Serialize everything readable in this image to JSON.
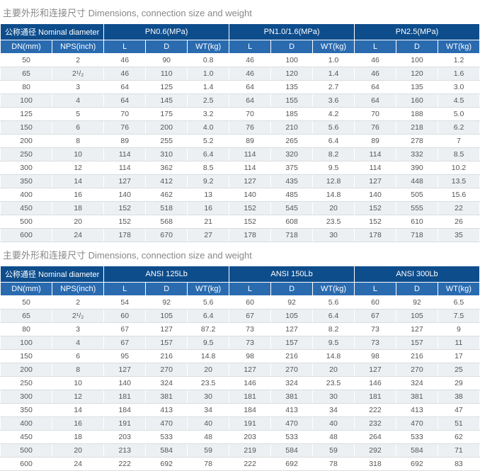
{
  "title1": "主要外形和连接尺寸 Dimensions, connection size and weight",
  "title2": "主要外形和连接尺寸 Dimensions, connection size and weight",
  "nomHeader": "公称通径 Nominal diameter",
  "dnHeader": "DN(mm)",
  "npsHeader": "NPS(inch)",
  "lHeader": "L",
  "dHeader": "D",
  "wtHeader": "WT(kg)",
  "t1": {
    "groups": [
      "PN0.6(MPa)",
      "PN1.0/1.6(MPa)",
      "PN2.5(MPa)"
    ],
    "rows": [
      {
        "dn": "50",
        "nps": "2",
        "v": [
          "46",
          "90",
          "0.8",
          "46",
          "100",
          "1.0",
          "46",
          "100",
          "1.2"
        ]
      },
      {
        "dn": "65",
        "nps": "2¹/₂",
        "v": [
          "46",
          "110",
          "1.0",
          "46",
          "120",
          "1.4",
          "46",
          "120",
          "1.6"
        ]
      },
      {
        "dn": "80",
        "nps": "3",
        "v": [
          "64",
          "125",
          "1.4",
          "64",
          "135",
          "2.7",
          "64",
          "135",
          "3.0"
        ]
      },
      {
        "dn": "100",
        "nps": "4",
        "v": [
          "64",
          "145",
          "2.5",
          "64",
          "155",
          "3.6",
          "64",
          "160",
          "4.5"
        ]
      },
      {
        "dn": "125",
        "nps": "5",
        "v": [
          "70",
          "175",
          "3.2",
          "70",
          "185",
          "4.2",
          "70",
          "188",
          "5.0"
        ]
      },
      {
        "dn": "150",
        "nps": "6",
        "v": [
          "76",
          "200",
          "4.0",
          "76",
          "210",
          "5.6",
          "76",
          "218",
          "6.2"
        ]
      },
      {
        "dn": "200",
        "nps": "8",
        "v": [
          "89",
          "255",
          "5.2",
          "89",
          "265",
          "6.4",
          "89",
          "278",
          "7"
        ]
      },
      {
        "dn": "250",
        "nps": "10",
        "v": [
          "114",
          "310",
          "6.4",
          "114",
          "320",
          "8.2",
          "114",
          "332",
          "8.5"
        ]
      },
      {
        "dn": "300",
        "nps": "12",
        "v": [
          "114",
          "362",
          "8.5",
          "114",
          "375",
          "9.5",
          "114",
          "390",
          "10.2"
        ]
      },
      {
        "dn": "350",
        "nps": "14",
        "v": [
          "127",
          "412",
          "9.2",
          "127",
          "435",
          "12.8",
          "127",
          "448",
          "13.5"
        ]
      },
      {
        "dn": "400",
        "nps": "16",
        "v": [
          "140",
          "462",
          "13",
          "140",
          "485",
          "14.8",
          "140",
          "505",
          "15.6"
        ]
      },
      {
        "dn": "450",
        "nps": "18",
        "v": [
          "152",
          "518",
          "16",
          "152",
          "545",
          "20",
          "152",
          "555",
          "22"
        ]
      },
      {
        "dn": "500",
        "nps": "20",
        "v": [
          "152",
          "568",
          "21",
          "152",
          "608",
          "23.5",
          "152",
          "610",
          "26"
        ]
      },
      {
        "dn": "600",
        "nps": "24",
        "v": [
          "178",
          "670",
          "27",
          "178",
          "718",
          "30",
          "178",
          "718",
          "35"
        ]
      }
    ]
  },
  "t2": {
    "groups": [
      "ANSI 125Lb",
      "ANSI 150Lb",
      "ANSI 300Lb"
    ],
    "rows": [
      {
        "dn": "50",
        "nps": "2",
        "v": [
          "54",
          "92",
          "5.6",
          "60",
          "92",
          "5.6",
          "60",
          "92",
          "6.5"
        ]
      },
      {
        "dn": "65",
        "nps": "2¹/₂",
        "v": [
          "60",
          "105",
          "6.4",
          "67",
          "105",
          "6.4",
          "67",
          "105",
          "7.5"
        ]
      },
      {
        "dn": "80",
        "nps": "3",
        "v": [
          "67",
          "127",
          "87.2",
          "73",
          "127",
          "8.2",
          "73",
          "127",
          "9"
        ]
      },
      {
        "dn": "100",
        "nps": "4",
        "v": [
          "67",
          "157",
          "9.5",
          "73",
          "157",
          "9.5",
          "73",
          "157",
          "11"
        ]
      },
      {
        "dn": "150",
        "nps": "6",
        "v": [
          "95",
          "216",
          "14.8",
          "98",
          "216",
          "14.8",
          "98",
          "216",
          "17"
        ]
      },
      {
        "dn": "200",
        "nps": "8",
        "v": [
          "127",
          "270",
          "20",
          "127",
          "270",
          "20",
          "127",
          "270",
          "25"
        ]
      },
      {
        "dn": "250",
        "nps": "10",
        "v": [
          "140",
          "324",
          "23.5",
          "146",
          "324",
          "23.5",
          "146",
          "324",
          "29"
        ]
      },
      {
        "dn": "300",
        "nps": "12",
        "v": [
          "181",
          "381",
          "30",
          "181",
          "381",
          "30",
          "181",
          "381",
          "38"
        ]
      },
      {
        "dn": "350",
        "nps": "14",
        "v": [
          "184",
          "413",
          "34",
          "184",
          "413",
          "34",
          "222",
          "413",
          "47"
        ]
      },
      {
        "dn": "400",
        "nps": "16",
        "v": [
          "191",
          "470",
          "40",
          "191",
          "470",
          "40",
          "232",
          "470",
          "51"
        ]
      },
      {
        "dn": "450",
        "nps": "18",
        "v": [
          "203",
          "533",
          "48",
          "203",
          "533",
          "48",
          "264",
          "533",
          "62"
        ]
      },
      {
        "dn": "500",
        "nps": "20",
        "v": [
          "213",
          "584",
          "59",
          "219",
          "584",
          "59",
          "292",
          "584",
          "71"
        ]
      },
      {
        "dn": "600",
        "nps": "24",
        "v": [
          "222",
          "692",
          "78",
          "222",
          "692",
          "78",
          "318",
          "692",
          "83"
        ]
      }
    ]
  }
}
